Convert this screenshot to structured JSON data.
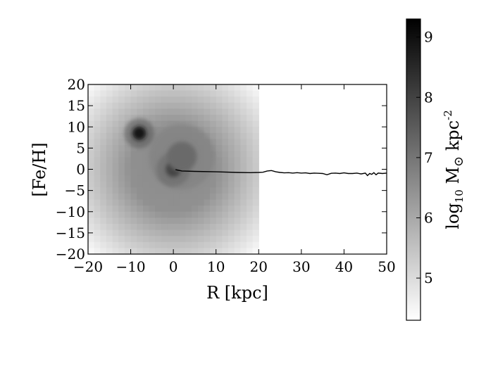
{
  "chart_data": {
    "type": "heatmap",
    "xlabel": "R [kpc]",
    "ylabel": "[Fe/H]",
    "xlim": [
      -20,
      50
    ],
    "ylim": [
      -20,
      20
    ],
    "xticks": [
      "−20",
      "−10",
      "0",
      "10",
      "20",
      "30",
      "40",
      "50"
    ],
    "yticks": [
      "20",
      "15",
      "10",
      "5",
      "0",
      "−5",
      "−10",
      "−15",
      "−20"
    ],
    "heatmap": {
      "x_extent": [
        -20,
        20
      ],
      "y_extent": [
        -20,
        20
      ],
      "colormap": "gray_r",
      "background_level": 6.4,
      "blobs": [
        {
          "x": 0,
          "y": 0,
          "peak": 9.3,
          "sigma": 1.8
        },
        {
          "x": -8,
          "y": 8.5,
          "peak": 8.8,
          "sigma": 1.6
        },
        {
          "x": 2,
          "y": 3,
          "peak": 7.2,
          "sigma": 3.5
        }
      ],
      "edge_falloff_level": 4.8
    },
    "series": [
      {
        "type": "line",
        "color": "#000000",
        "x": [
          0.5,
          2,
          5,
          10,
          15,
          18,
          20,
          21,
          22,
          23,
          24,
          25,
          26,
          27,
          28,
          29,
          30,
          31,
          32,
          33,
          34,
          35,
          36,
          37,
          38,
          39,
          40,
          41,
          42,
          43,
          44,
          45,
          45.5,
          46,
          46.5,
          47,
          47.5,
          48,
          49,
          50
        ],
        "y": [
          -0.1,
          -0.4,
          -0.5,
          -0.6,
          -0.75,
          -0.8,
          -0.75,
          -0.7,
          -0.4,
          -0.3,
          -0.6,
          -0.75,
          -0.85,
          -0.8,
          -0.9,
          -0.8,
          -0.9,
          -0.85,
          -1.0,
          -0.9,
          -0.95,
          -1.0,
          -1.3,
          -0.95,
          -0.9,
          -1.0,
          -0.85,
          -1.0,
          -1.0,
          -0.9,
          -1.1,
          -0.9,
          -1.5,
          -1.0,
          -1.2,
          -0.8,
          -1.3,
          -0.9,
          -1.0,
          -0.9
        ]
      }
    ],
    "colorbar": {
      "label_base": "log",
      "label_sub": "10",
      "label_mid": " M",
      "label_sym": "⊙",
      "label_unit": " kpc",
      "label_exp": "-2",
      "range": [
        4.3,
        9.3
      ],
      "ticks": [
        "5",
        "6",
        "7",
        "8",
        "9"
      ],
      "tick_values": [
        5,
        6,
        7,
        8,
        9
      ]
    }
  }
}
